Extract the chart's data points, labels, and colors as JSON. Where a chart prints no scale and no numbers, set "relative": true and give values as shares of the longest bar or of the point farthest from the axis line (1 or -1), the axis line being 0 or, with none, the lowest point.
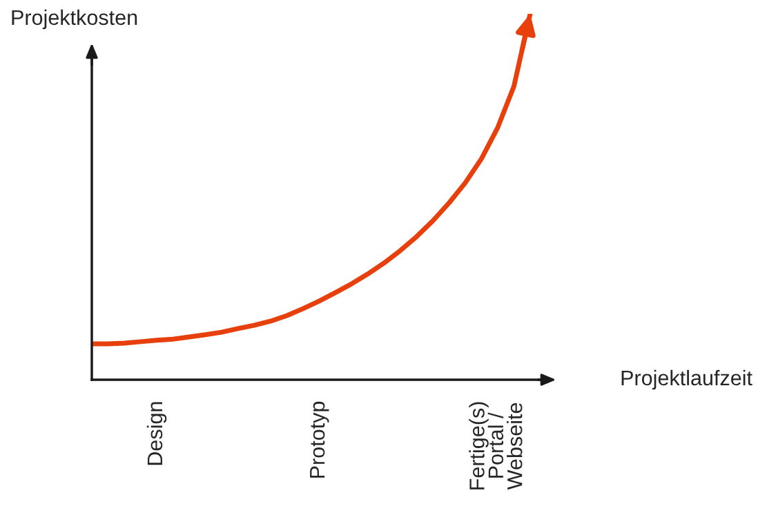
{
  "chart_data": {
    "type": "line",
    "relative": true,
    "xlabel": "Projektlaufzeit",
    "ylabel": "Projektkosten",
    "categories": [
      null,
      null,
      null,
      null,
      "Design",
      null,
      null,
      null,
      null,
      null,
      null,
      null,
      null,
      null,
      "Prototyp",
      null,
      null,
      null,
      null,
      null,
      null,
      null,
      null,
      null,
      null,
      "Fertige(s)\nPortal /\nWebseite",
      null,
      null
    ],
    "series": [
      {
        "color": "#e8400c",
        "values": [
          0.098,
          0.098,
          0.1,
          0.104,
          0.108,
          0.111,
          0.117,
          0.123,
          0.13,
          0.14,
          0.149,
          0.16,
          0.175,
          0.194,
          0.215,
          0.238,
          0.262,
          0.289,
          0.319,
          0.353,
          0.391,
          0.434,
          0.483,
          0.538,
          0.604,
          0.689,
          0.802,
          1
        ]
      }
    ],
    "grid": false,
    "legend": false,
    "marker": "none",
    "line_style": "solid"
  }
}
